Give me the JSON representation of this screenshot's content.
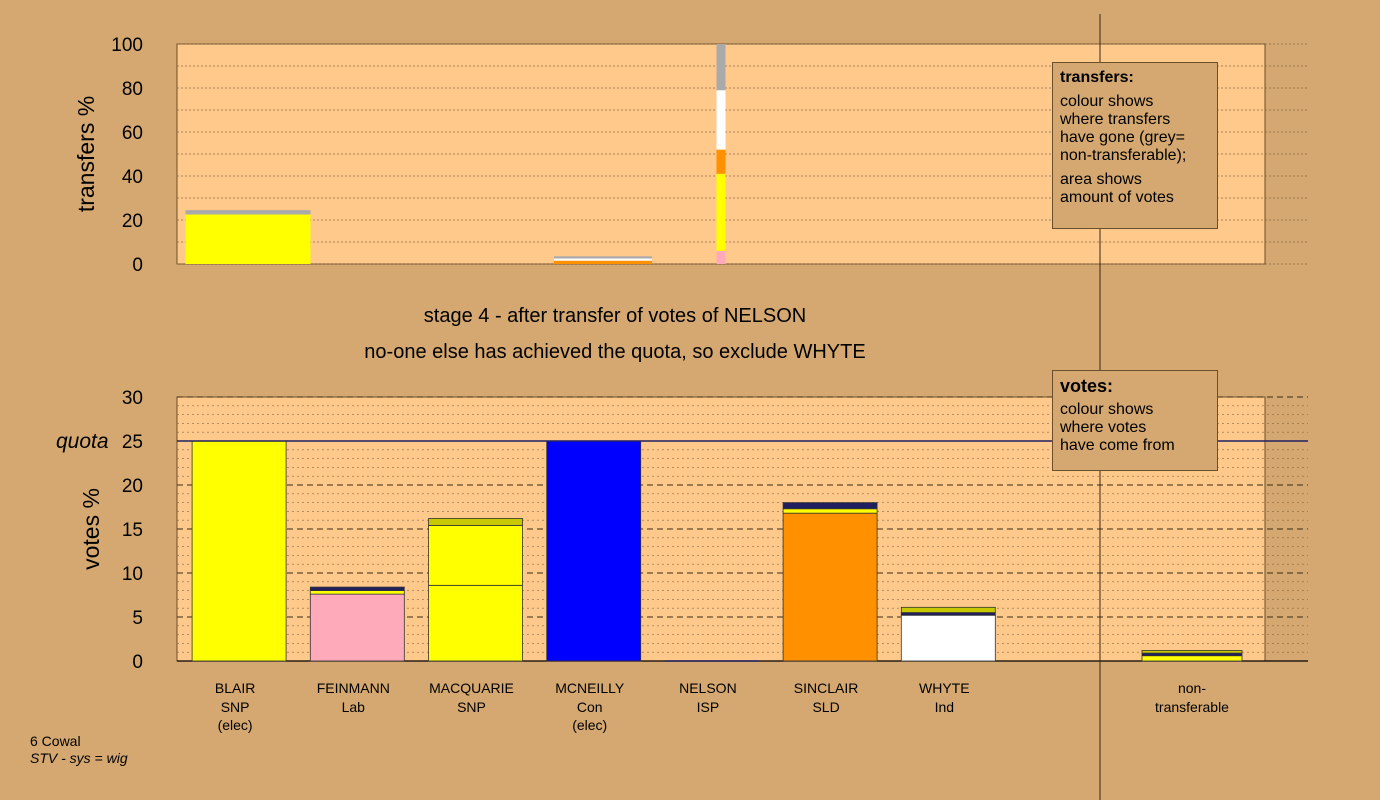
{
  "colors": {
    "background": "#d4a870",
    "plot": "#ffc98c",
    "SNP": "#ffff00",
    "SNP_dark": "#c8c800",
    "Lab": "#ffaabb",
    "Con": "#0000ff",
    "SLD": "#ff9000",
    "Ind": "#ffffff",
    "ISP": "#202060",
    "nontransferable": "#aaaaaa"
  },
  "headings": {
    "line1": "stage 4 - after transfer of votes of NELSON",
    "line2": "no-one else has achieved the quota, so exclude WHYTE"
  },
  "legend_transfers": {
    "title": "transfers:",
    "lines": [
      "colour shows",
      "where transfers",
      "have gone (grey=",
      "non-transferable);"
    ],
    "lines2": [
      "area shows",
      "amount of votes"
    ]
  },
  "legend_votes": {
    "title": "votes:",
    "lines": [
      "colour shows",
      "where votes",
      "have come from"
    ]
  },
  "footer": {
    "line1": "6 Cowal",
    "line2": "STV - sys = wig"
  },
  "chart_data": [
    {
      "type": "bar",
      "ylabel": "transfers %",
      "ylim": [
        0,
        100
      ],
      "yticks": [
        0,
        20,
        40,
        60,
        80,
        100
      ],
      "grid": true,
      "bars": [
        {
          "category": "BLAIR",
          "segments": [
            {
              "party": "SNP",
              "value": 22.5
            },
            {
              "party": "nontransferable",
              "value": 2
            }
          ]
        },
        {
          "category": "MCNEILLY",
          "segments": [
            {
              "party": "SLD",
              "value": 1.5
            },
            {
              "party": "Ind",
              "value": 1
            },
            {
              "party": "nontransferable",
              "value": 1
            }
          ]
        },
        {
          "category": "NELSON",
          "segments": [
            {
              "party": "Lab",
              "value": 6
            },
            {
              "party": "SNP",
              "value": 35
            },
            {
              "party": "SLD",
              "value": 11
            },
            {
              "party": "Ind",
              "value": 27
            },
            {
              "party": "nontransferable",
              "value": 21
            }
          ]
        }
      ]
    },
    {
      "type": "bar",
      "ylabel": "votes %",
      "ylim": [
        0,
        30
      ],
      "yticks": [
        0,
        5,
        10,
        15,
        20,
        25,
        30
      ],
      "quota": 25,
      "quota_label": "quota",
      "grid": true,
      "categories": [
        {
          "name": "BLAIR",
          "party": "SNP",
          "note": "(elec)"
        },
        {
          "name": "FEINMANN",
          "party": "Lab",
          "note": ""
        },
        {
          "name": "MACQUARIE",
          "party": "SNP",
          "note": ""
        },
        {
          "name": "MCNEILLY",
          "party": "Con",
          "note": "(elec)"
        },
        {
          "name": "NELSON",
          "party": "ISP",
          "note": ""
        },
        {
          "name": "SINCLAIR",
          "party": "SLD",
          "note": ""
        },
        {
          "name": "WHYTE",
          "party": "Ind",
          "note": ""
        },
        {
          "name": "non-",
          "party": "transferable",
          "note": ""
        }
      ],
      "bars": [
        {
          "category": "BLAIR",
          "segments": [
            {
              "party": "SNP",
              "value": 25
            }
          ]
        },
        {
          "category": "FEINMANN",
          "segments": [
            {
              "party": "Lab",
              "value": 7.6
            },
            {
              "party": "SNP",
              "value": 0.4
            },
            {
              "party": "ISP",
              "value": 0.4
            }
          ]
        },
        {
          "category": "MACQUARIE",
          "segments": [
            {
              "party": "SNP",
              "value": 8.6
            },
            {
              "party": "SNP",
              "value": 6.8
            },
            {
              "party": "SNP_dark",
              "value": 0.8
            }
          ]
        },
        {
          "category": "MCNEILLY",
          "segments": [
            {
              "party": "Con",
              "value": 25
            }
          ]
        },
        {
          "category": "NELSON",
          "segments": []
        },
        {
          "category": "SINCLAIR",
          "segments": [
            {
              "party": "SLD",
              "value": 16.8
            },
            {
              "party": "SNP",
              "value": 0.5
            },
            {
              "party": "ISP",
              "value": 0.7
            }
          ]
        },
        {
          "category": "WHYTE",
          "segments": [
            {
              "party": "Ind",
              "value": 5.2
            },
            {
              "party": "ISP",
              "value": 0.3
            },
            {
              "party": "SNP_dark",
              "value": 0.6
            }
          ]
        },
        {
          "category": "non-",
          "segments": [
            {
              "party": "SNP",
              "value": 0.6
            },
            {
              "party": "ISP",
              "value": 0.3
            },
            {
              "party": "SNP_dark",
              "value": 0.3
            }
          ]
        }
      ]
    }
  ]
}
